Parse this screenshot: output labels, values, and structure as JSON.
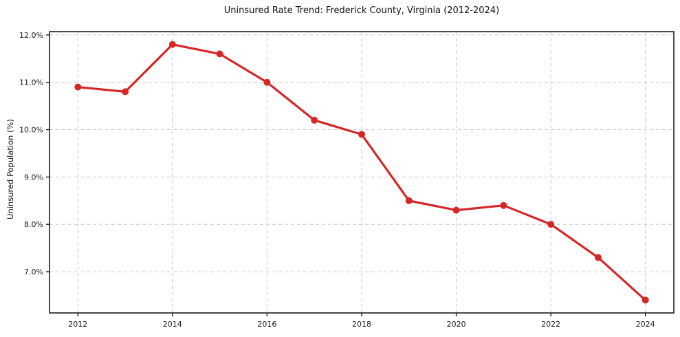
{
  "chart_data": {
    "type": "line",
    "title": "Uninsured Rate Trend: Frederick County, Virginia (2012-2024)",
    "xlabel": "",
    "ylabel": "Uninsured Population (%)",
    "x": [
      2012,
      2013,
      2014,
      2015,
      2016,
      2017,
      2018,
      2019,
      2020,
      2021,
      2022,
      2023,
      2024
    ],
    "values": [
      10.9,
      10.8,
      11.8,
      11.6,
      11.0,
      10.2,
      9.9,
      8.5,
      8.3,
      8.4,
      8.0,
      7.3,
      6.4
    ],
    "xlim": [
      2011.4,
      2024.6
    ],
    "ylim": [
      6.13,
      12.07
    ],
    "x_ticks": [
      {
        "v": 2012,
        "label": "2012"
      },
      {
        "v": 2014,
        "label": "2014"
      },
      {
        "v": 2016,
        "label": "2016"
      },
      {
        "v": 2018,
        "label": "2018"
      },
      {
        "v": 2020,
        "label": "2020"
      },
      {
        "v": 2022,
        "label": "2022"
      },
      {
        "v": 2024,
        "label": "2024"
      }
    ],
    "y_ticks": [
      {
        "v": 7,
        "label": "7.0%"
      },
      {
        "v": 8,
        "label": "8.0%"
      },
      {
        "v": 9,
        "label": "9.0%"
      },
      {
        "v": 10,
        "label": "10.0%"
      },
      {
        "v": 11,
        "label": "11.0%"
      },
      {
        "v": 12,
        "label": "12.0%"
      }
    ],
    "grid": "dashed",
    "legend": "none",
    "colors": {
      "line": "#d62728",
      "marker": "#d62728",
      "grid": "#c9c9c9",
      "spine": "#1c1c1c",
      "text": "#1a1a1a",
      "background": "#ffffff"
    }
  }
}
